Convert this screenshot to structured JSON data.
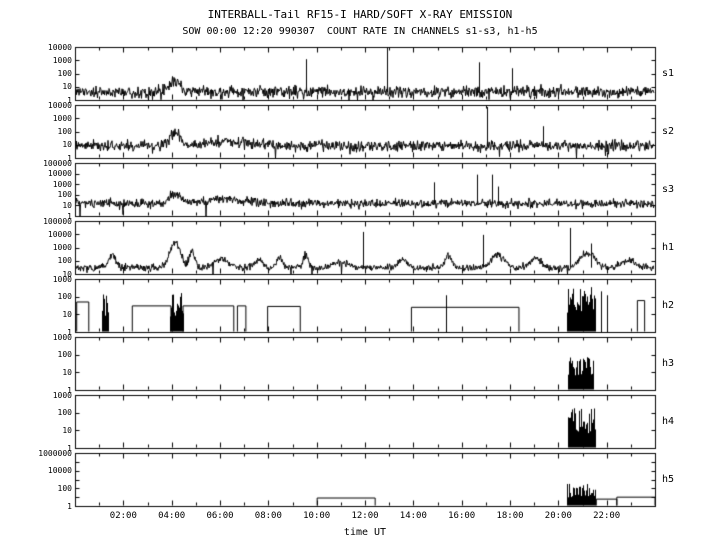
{
  "chart_data": {
    "type": "line",
    "title": "INTERBALL-Tail RF15-I HARD/SOFT X-RAY EMISSION",
    "subtitle": "SOW 00:00 12:20 990307  COUNT RATE IN CHANNELS s1-s3, h1-h5",
    "xlabel": "time UT",
    "x_range_hours": [
      0,
      24
    ],
    "x_major_ticks": [
      {
        "hour": 2,
        "label": "02:00"
      },
      {
        "hour": 4,
        "label": "04:00"
      },
      {
        "hour": 6,
        "label": "06:00"
      },
      {
        "hour": 8,
        "label": "08:00"
      },
      {
        "hour": 10,
        "label": "10:00"
      },
      {
        "hour": 12,
        "label": "12:00"
      },
      {
        "hour": 14,
        "label": "14:00"
      },
      {
        "hour": 16,
        "label": "16:00"
      },
      {
        "hour": 18,
        "label": "18:00"
      },
      {
        "hour": 20,
        "label": "20:00"
      },
      {
        "hour": 22,
        "label": "22:00"
      }
    ],
    "panels": [
      {
        "label": "s1",
        "style": "noisy",
        "ylim": [
          1,
          10000
        ],
        "ytick_labels": [
          "10000",
          "1000",
          "100",
          "10",
          "1"
        ],
        "baseline": 4,
        "noise_dex": 0.22,
        "bumps": [
          {
            "t": 4.15,
            "w": 0.22,
            "peak": 28
          }
        ],
        "spikes": [
          {
            "t": 9.55,
            "peak": 1200
          },
          {
            "t": 12.9,
            "peak": 9500
          },
          {
            "t": 16.7,
            "peak": 700
          },
          {
            "t": 18.1,
            "peak": 250
          }
        ]
      },
      {
        "label": "s2",
        "style": "noisy",
        "ylim": [
          1,
          10000
        ],
        "ytick_labels": [
          "10000",
          "1000",
          "100",
          "10",
          "1"
        ],
        "baseline": 8,
        "noise_dex": 0.2,
        "bumps": [
          {
            "t": 4.15,
            "w": 0.22,
            "peak": 70
          },
          {
            "t": 6.3,
            "w": 0.8,
            "peak": 18
          }
        ],
        "spikes": [
          {
            "t": 17.05,
            "peak": 7000
          },
          {
            "t": 19.35,
            "peak": 250
          }
        ]
      },
      {
        "label": "s3",
        "style": "noisy",
        "ylim": [
          1,
          100000
        ],
        "ytick_labels": [
          "100000",
          "10000",
          "1000",
          "100",
          "10",
          "1"
        ],
        "baseline": 15,
        "noise_dex": 0.2,
        "bumps": [
          {
            "t": 4.15,
            "w": 0.25,
            "peak": 120
          },
          {
            "t": 6.3,
            "w": 0.8,
            "peak": 40
          }
        ],
        "spikes": [
          {
            "t": 14.85,
            "peak": 1500
          },
          {
            "t": 16.65,
            "peak": 8000
          },
          {
            "t": 17.25,
            "peak": 8000
          },
          {
            "t": 17.5,
            "peak": 600
          }
        ]
      },
      {
        "label": "h1",
        "style": "noisy",
        "ylim": [
          10,
          100000
        ],
        "ytick_labels": [
          "100000",
          "10000",
          "1000",
          "100",
          "10"
        ],
        "baseline": 30,
        "noise_dex": 0.13,
        "bumps": [
          {
            "t": 1.55,
            "w": 0.15,
            "peak": 250
          },
          {
            "t": 4.15,
            "w": 0.22,
            "peak": 2500
          },
          {
            "t": 4.85,
            "w": 0.12,
            "peak": 450
          },
          {
            "t": 6.05,
            "w": 0.3,
            "peak": 140
          },
          {
            "t": 7.6,
            "w": 0.15,
            "peak": 130
          },
          {
            "t": 8.45,
            "w": 0.12,
            "peak": 160
          },
          {
            "t": 9.55,
            "w": 0.1,
            "peak": 260
          },
          {
            "t": 11.0,
            "w": 0.3,
            "peak": 80
          },
          {
            "t": 13.55,
            "w": 0.2,
            "peak": 130
          },
          {
            "t": 15.45,
            "w": 0.15,
            "peak": 220
          },
          {
            "t": 17.5,
            "w": 0.25,
            "peak": 280
          },
          {
            "t": 19.05,
            "w": 0.2,
            "peak": 160
          },
          {
            "t": 21.2,
            "w": 0.3,
            "peak": 420
          },
          {
            "t": 22.9,
            "w": 0.25,
            "peak": 110
          }
        ],
        "spikes": [
          {
            "t": 11.9,
            "peak": 15000
          },
          {
            "t": 16.9,
            "peak": 9000
          },
          {
            "t": 20.5,
            "peak": 30000
          },
          {
            "t": 21.35,
            "peak": 2000
          }
        ]
      },
      {
        "label": "h2",
        "style": "steps",
        "ylim": [
          1,
          1000
        ],
        "ytick_labels": [
          "1000",
          "100",
          "10",
          "1"
        ],
        "levels": [
          {
            "t0": 0.05,
            "t1": 0.55,
            "v": 50
          },
          {
            "t0": 2.35,
            "t1": 3.95,
            "v": 30
          },
          {
            "t0": 4.45,
            "t1": 6.55,
            "v": 30
          },
          {
            "t0": 6.7,
            "t1": 7.05,
            "v": 30
          },
          {
            "t0": 7.95,
            "t1": 9.3,
            "v": 28
          },
          {
            "t0": 13.9,
            "t1": 18.35,
            "v": 25
          },
          {
            "t0": 23.25,
            "t1": 23.55,
            "v": 60
          }
        ],
        "bursts": [
          {
            "t0": 1.1,
            "t1": 1.35,
            "peak": 150
          },
          {
            "t0": 3.95,
            "t1": 4.45,
            "peak": 200
          },
          {
            "t0": 20.35,
            "t1": 21.0,
            "peak": 600
          },
          {
            "t0": 21.05,
            "t1": 21.5,
            "peak": 600
          }
        ],
        "spikes": [
          {
            "t": 15.35,
            "peak": 120
          },
          {
            "t": 21.75,
            "peak": 200
          },
          {
            "t": 22.0,
            "peak": 120
          }
        ]
      },
      {
        "label": "h3",
        "style": "steps",
        "ylim": [
          1,
          1000
        ],
        "ytick_labels": [
          "1000",
          "100",
          "10",
          "1"
        ],
        "levels": [],
        "bursts": [
          {
            "t0": 20.4,
            "t1": 21.05,
            "peak": 150
          },
          {
            "t0": 21.1,
            "t1": 21.45,
            "peak": 150
          }
        ],
        "spikes": []
      },
      {
        "label": "h4",
        "style": "steps",
        "ylim": [
          1,
          1000
        ],
        "ytick_labels": [
          "1000",
          "100",
          "10",
          "1"
        ],
        "levels": [],
        "bursts": [
          {
            "t0": 20.4,
            "t1": 21.05,
            "peak": 180
          },
          {
            "t0": 21.1,
            "t1": 21.5,
            "peak": 180
          }
        ],
        "spikes": []
      },
      {
        "label": "h5",
        "style": "steps",
        "ylim": [
          1,
          1000000
        ],
        "ytick_labels": [
          "1000000",
          "10000",
          "100",
          "1"
        ],
        "levels": [
          {
            "t0": 10.0,
            "t1": 12.4,
            "v": 8
          },
          {
            "t0": 21.55,
            "t1": 22.4,
            "v": 6
          },
          {
            "t0": 22.4,
            "t1": 23.98,
            "v": 10
          }
        ],
        "bursts": [
          {
            "t0": 20.35,
            "t1": 21.5,
            "peak": 400
          }
        ],
        "spikes": []
      }
    ]
  }
}
